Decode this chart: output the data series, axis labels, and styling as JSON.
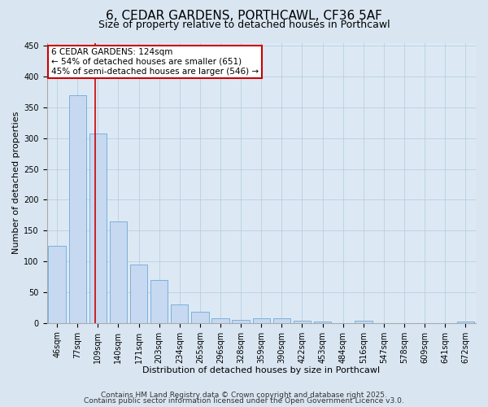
{
  "title": "6, CEDAR GARDENS, PORTHCAWL, CF36 5AF",
  "subtitle": "Size of property relative to detached houses in Porthcawl",
  "xlabel": "Distribution of detached houses by size in Porthcawl",
  "ylabel": "Number of detached properties",
  "categories": [
    "46sqm",
    "77sqm",
    "109sqm",
    "140sqm",
    "171sqm",
    "203sqm",
    "234sqm",
    "265sqm",
    "296sqm",
    "328sqm",
    "359sqm",
    "390sqm",
    "422sqm",
    "453sqm",
    "484sqm",
    "516sqm",
    "547sqm",
    "578sqm",
    "609sqm",
    "641sqm",
    "672sqm"
  ],
  "values": [
    125,
    370,
    308,
    165,
    95,
    70,
    30,
    18,
    8,
    5,
    8,
    8,
    4,
    2,
    0,
    3,
    0,
    0,
    0,
    0,
    2
  ],
  "bar_color": "#c6d9f0",
  "bar_edge_color": "#6fa8d8",
  "grid_color": "#b8cfe0",
  "background_color": "#d9e6f2",
  "plot_bg_color": "#dce9f5",
  "red_line_color": "#cc0000",
  "annotation_text": "6 CEDAR GARDENS: 124sqm\n← 54% of detached houses are smaller (651)\n45% of semi-detached houses are larger (546) →",
  "annotation_box_facecolor": "#ffffff",
  "annotation_box_edgecolor": "#cc0000",
  "ylim": [
    0,
    455
  ],
  "yticks": [
    0,
    50,
    100,
    150,
    200,
    250,
    300,
    350,
    400,
    450
  ],
  "footer1": "Contains HM Land Registry data © Crown copyright and database right 2025.",
  "footer2": "Contains public sector information licensed under the Open Government Licence v3.0.",
  "title_fontsize": 11,
  "subtitle_fontsize": 9,
  "axis_label_fontsize": 8,
  "tick_fontsize": 7,
  "annotation_fontsize": 7.5,
  "footer_fontsize": 6.5
}
